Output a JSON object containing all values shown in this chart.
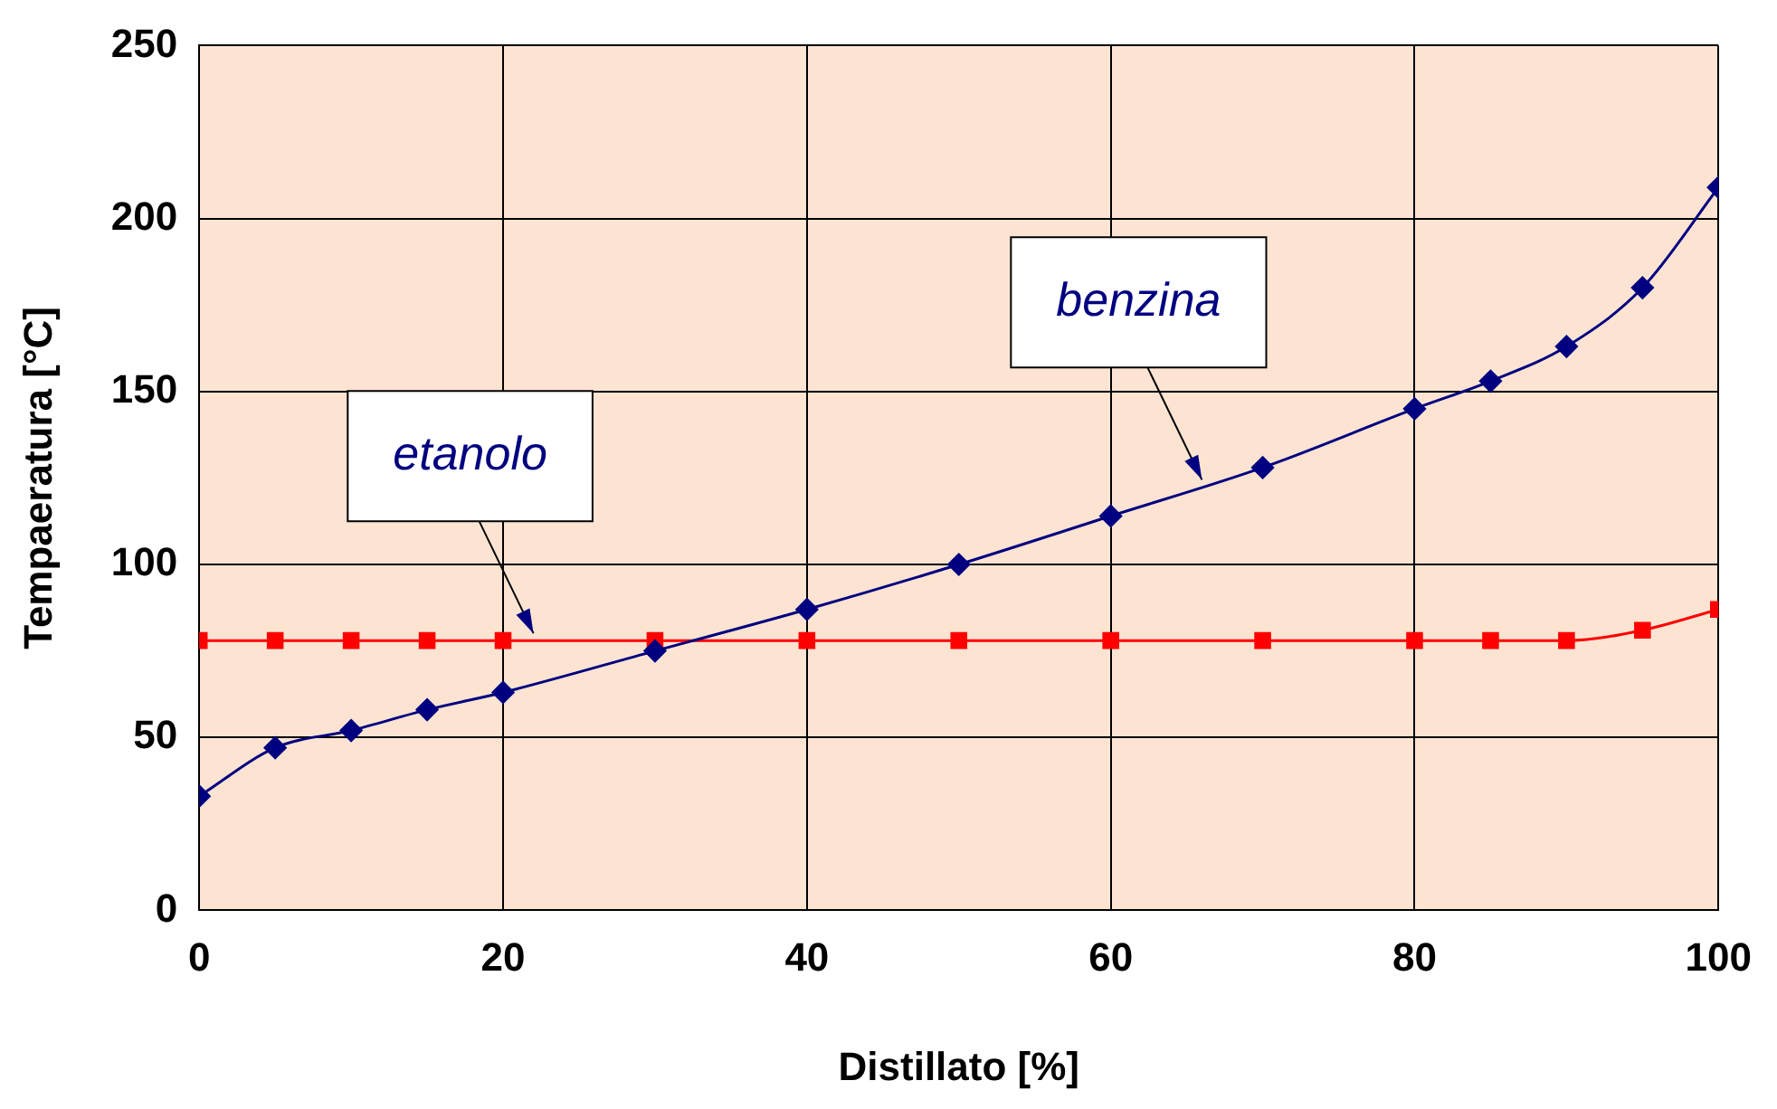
{
  "chart_data": {
    "type": "line",
    "xlabel": "Distillato [%]",
    "ylabel": "Tempaeratura [°C]",
    "xlim": [
      0,
      100
    ],
    "xticks": [
      0,
      20,
      40,
      60,
      80,
      100
    ],
    "ylim": [
      0,
      250
    ],
    "yticks": [
      0,
      50,
      100,
      150,
      200,
      250
    ],
    "grid": true,
    "legend": false,
    "series": [
      {
        "name": "benzina",
        "color": "#000080",
        "marker": "diamond",
        "x": [
          0,
          5,
          10,
          15,
          20,
          30,
          40,
          50,
          60,
          70,
          80,
          85,
          90,
          95,
          100
        ],
        "values": [
          33,
          47,
          52,
          58,
          63,
          75,
          87,
          100,
          114,
          128,
          145,
          153,
          163,
          180,
          209
        ]
      },
      {
        "name": "etanolo",
        "color": "#ff0000",
        "marker": "square",
        "x": [
          0,
          5,
          10,
          15,
          20,
          30,
          40,
          50,
          60,
          70,
          80,
          85,
          90,
          95,
          100
        ],
        "values": [
          78,
          78,
          78,
          78,
          78,
          78,
          78,
          78,
          78,
          78,
          78,
          78,
          78,
          81,
          87
        ]
      }
    ]
  }
}
